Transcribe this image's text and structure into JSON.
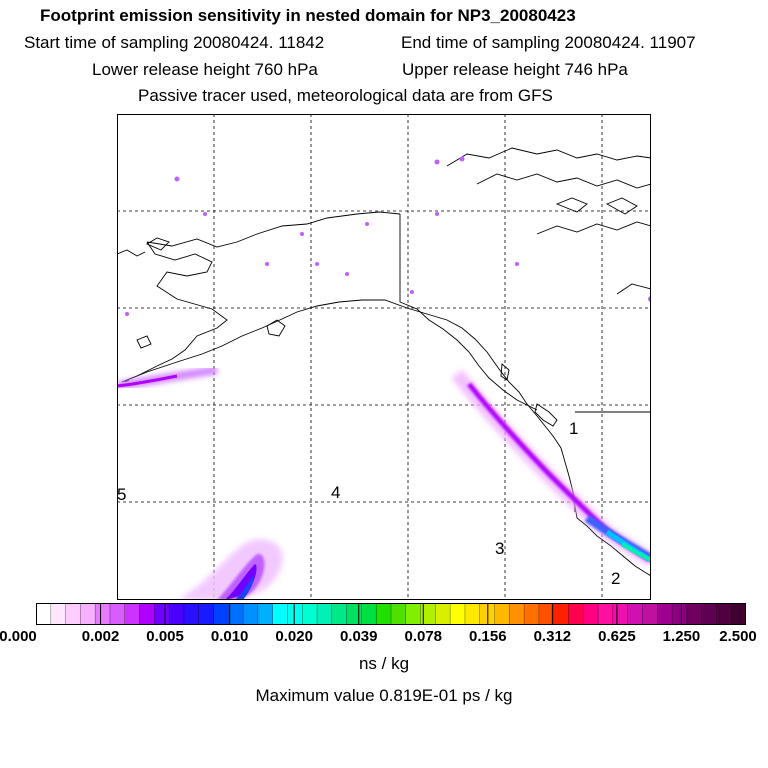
{
  "header": {
    "title": "Footprint emission sensitivity in nested domain for NP3_20080423",
    "start": "Start time of sampling 20080424. 11842",
    "end": "End time of sampling 20080424. 11907",
    "lower": "Lower release height  760 hPa",
    "upper": "Upper release height  746 hPa",
    "note": "Passive tracer used, meteorological data are from GFS"
  },
  "map": {
    "region_labels": [
      "5",
      "4",
      "3",
      "2",
      "1"
    ],
    "colors": {
      "land_outline": "#000000",
      "plume_low": "#f0b0ff",
      "plume_mid": "#b000ff",
      "plume_high": "#00ffb0"
    }
  },
  "colorbar": {
    "units": "ns / kg",
    "ticks": [
      "0.000",
      "0.002",
      "0.005",
      "0.010",
      "0.020",
      "0.039",
      "0.078",
      "0.156",
      "0.312",
      "0.625",
      "1.250",
      "2.500"
    ],
    "colors": [
      "#ffffff",
      "#ffe6ff",
      "#ffccff",
      "#f5b0ff",
      "#e67aff",
      "#d95cff",
      "#cc33ff",
      "#b000ff",
      "#7000ff",
      "#4a00ff",
      "#2a10ff",
      "#1a1aff",
      "#0040ff",
      "#0070ff",
      "#0090ff",
      "#00b0ff",
      "#00ffff",
      "#00ffee",
      "#00ffd0",
      "#00f0b8",
      "#00e888",
      "#00e060",
      "#00e040",
      "#20e000",
      "#50e000",
      "#80f000",
      "#b0f000",
      "#d8f000",
      "#ffff00",
      "#ffe800",
      "#ffd000",
      "#ffb800",
      "#ff9000",
      "#ff7000",
      "#ff5000",
      "#ff2000",
      "#ff0050",
      "#ff0080",
      "#ff10a0",
      "#f010b0",
      "#d010b0",
      "#c010a0",
      "#a00090",
      "#8a0080",
      "#700060",
      "#600050",
      "#500040",
      "#400030"
    ]
  },
  "footer": {
    "max_value": "Maximum value  0.819E-01 ps / kg"
  }
}
